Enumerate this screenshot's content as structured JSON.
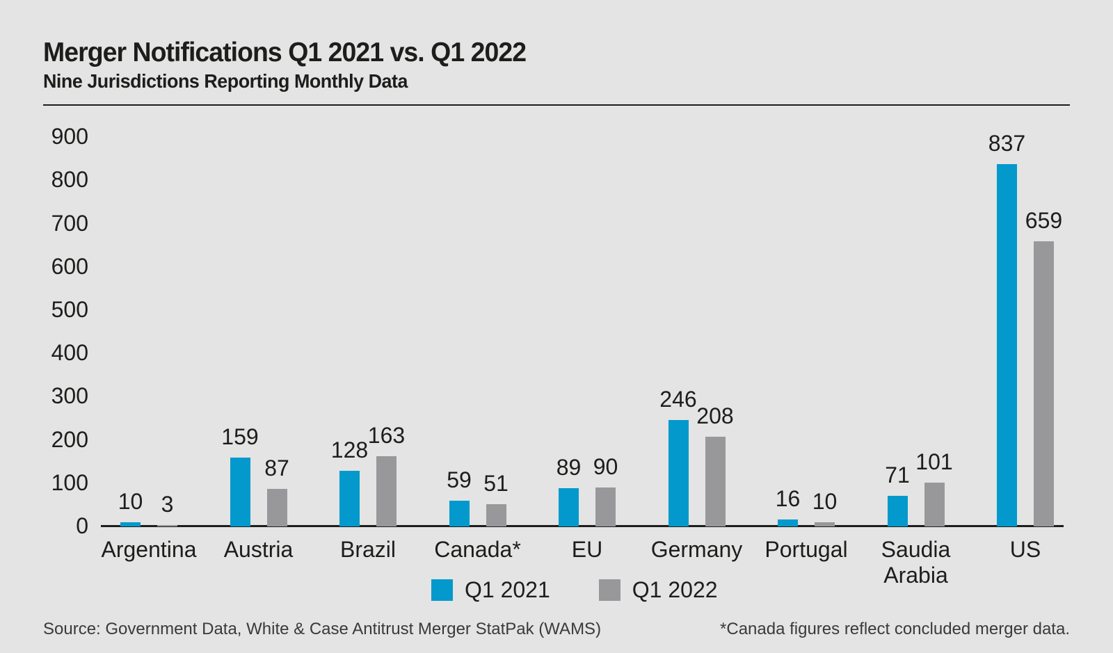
{
  "header": {
    "title": "Merger Notifications Q1 2021 vs. Q1 2022",
    "subtitle": "Nine Jurisdictions Reporting Monthly Data"
  },
  "colors": {
    "background": "#e3e4e3",
    "q1_2021_blue": "#0399cc",
    "q1_2022_gray": "#98989b",
    "text": "#1d1d1b",
    "footer_text": "#3a3a39",
    "axis": "#1d1d1b"
  },
  "chart_data": {
    "type": "bar",
    "title": "Merger Notifications Q1 2021 vs. Q1 2022",
    "subtitle": "Nine Jurisdictions Reporting Monthly Data",
    "categories": [
      "Argentina",
      "Austria",
      "Brazil",
      "Canada*",
      "EU",
      "Germany",
      "Portugal",
      "Saudia Arabia",
      "US"
    ],
    "series": [
      {
        "name": "Q1 2021",
        "color": "#0399cc",
        "values": [
          10,
          159,
          128,
          59,
          89,
          246,
          16,
          71,
          837
        ]
      },
      {
        "name": "Q1 2022",
        "color": "#98989b",
        "values": [
          3,
          87,
          163,
          51,
          90,
          208,
          10,
          101,
          659
        ]
      }
    ],
    "xlabel": "",
    "ylabel": "",
    "ylim": [
      0,
      900
    ],
    "yticks": [
      0,
      100,
      200,
      300,
      400,
      500,
      600,
      700,
      800,
      900
    ],
    "grid": false,
    "legend_position": "bottom",
    "value_labels": true
  },
  "legend": {
    "items": [
      {
        "label": "Q1 2021",
        "color": "#0399cc"
      },
      {
        "label": "Q1 2022",
        "color": "#98989b"
      }
    ]
  },
  "footer": {
    "source": "Source: Government Data, White & Case Antitrust Merger StatPak (WAMS)",
    "note": "*Canada figures reflect concluded merger data."
  }
}
